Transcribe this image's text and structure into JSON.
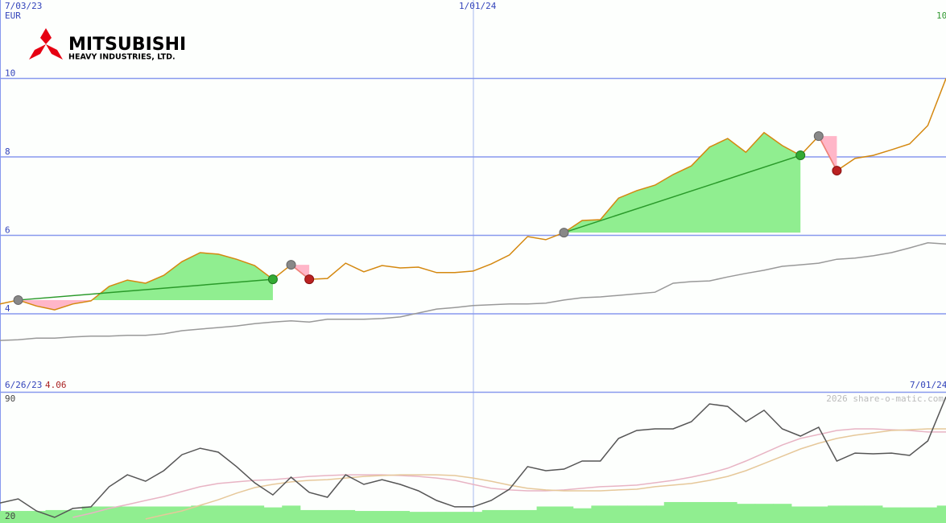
{
  "logo": {
    "name": "MITSUBISHI",
    "subtitle": "HEAVY INDUSTRIES, LTD."
  },
  "chart_data": [
    {
      "type": "line",
      "currency": "EUR",
      "date_labels": [
        "7/03/23",
        "1/01/24"
      ],
      "last_price_label": "10",
      "start_date": "6/26/23",
      "start_price": "4.06",
      "end_date": "7/01/24",
      "ylim": [
        2,
        12
      ],
      "yticks": [
        4,
        6,
        8,
        10
      ],
      "grid": true,
      "series": [
        {
          "color": "#d4880f",
          "values": [
            4.25,
            4.35,
            4.2,
            4.1,
            4.25,
            4.33,
            4.7,
            4.86,
            4.78,
            4.98,
            5.33,
            5.56,
            5.52,
            5.39,
            5.23,
            4.88,
            5.25,
            4.88,
            4.9,
            5.29,
            5.07,
            5.23,
            5.17,
            5.19,
            5.05,
            5.05,
            5.09,
            5.27,
            5.5,
            5.97,
            5.89,
            6.07,
            6.38,
            6.4,
            6.95,
            7.14,
            7.28,
            7.55,
            7.77,
            8.25,
            8.47,
            8.12,
            8.62,
            8.29,
            8.04,
            8.53,
            7.65,
            7.96,
            8.04,
            8.18,
            8.33,
            8.8,
            10.0
          ]
        },
        {
          "color": "#999999",
          "values": [
            3.32,
            3.34,
            3.38,
            3.38,
            3.41,
            3.43,
            3.43,
            3.45,
            3.45,
            3.49,
            3.57,
            3.61,
            3.65,
            3.69,
            3.75,
            3.79,
            3.82,
            3.79,
            3.86,
            3.86,
            3.86,
            3.88,
            3.92,
            4.02,
            4.12,
            4.16,
            4.21,
            4.23,
            4.25,
            4.25,
            4.27,
            4.35,
            4.41,
            4.43,
            4.47,
            4.51,
            4.55,
            4.78,
            4.82,
            4.84,
            4.94,
            5.03,
            5.11,
            5.21,
            5.25,
            5.29,
            5.39,
            5.42,
            5.48,
            5.56,
            5.68,
            5.81,
            5.78
          ]
        }
      ],
      "trades": [
        {
          "entry": 1,
          "exit": 15,
          "result": "gain"
        },
        {
          "entry": 16,
          "exit": 17,
          "result": "loss"
        },
        {
          "entry": 31,
          "exit": 44,
          "result": "gain"
        },
        {
          "entry": 45,
          "exit": 46,
          "result": "loss"
        }
      ]
    },
    {
      "type": "line",
      "watermark": "2026 share-o-matic.com",
      "ylim": [
        20,
        90
      ],
      "yticks": [
        20,
        90
      ],
      "series": [
        {
          "style": "bar",
          "color": "#90ee90",
          "values": [
            24.5,
            24.5,
            24.5,
            25,
            25,
            27,
            27,
            27,
            27,
            27,
            27,
            27.5,
            27.5,
            27.5,
            27.5,
            26.5,
            27.5,
            25,
            25,
            25,
            24.5,
            24.5,
            24.5,
            24,
            24,
            24,
            24,
            25,
            25,
            25,
            27,
            27,
            26,
            27.5,
            27.5,
            27.5,
            27.5,
            29.5,
            29.5,
            29.5,
            29.5,
            28.5,
            28.5,
            28.5,
            27,
            27,
            27.5,
            27.5,
            27.5,
            26.5,
            26.5,
            26.5,
            27.5
          ]
        },
        {
          "color": "#e8b4c4",
          "values": [
            null,
            null,
            null,
            null,
            20.9,
            23.2,
            25.9,
            28.1,
            30.4,
            32.6,
            35.4,
            38.1,
            39.9,
            40.8,
            41.7,
            42.1,
            43.0,
            43.9,
            44.4,
            44.8,
            44.8,
            44.8,
            44.4,
            43.9,
            43.0,
            41.7,
            39.4,
            37.2,
            36.3,
            35.8,
            35.8,
            36.3,
            37.2,
            38.1,
            38.5,
            39.0,
            40.3,
            41.7,
            43.5,
            45.7,
            48.5,
            52.5,
            57.0,
            61.5,
            65.2,
            67.4,
            69.7,
            70.6,
            70.6,
            70.1,
            69.7,
            68.8,
            68.8
          ]
        },
        {
          "color": "#e6c89a",
          "values": [
            null,
            null,
            null,
            null,
            null,
            null,
            null,
            null,
            20.0,
            22.3,
            24.5,
            27.7,
            30.8,
            34.5,
            37.6,
            39.4,
            40.8,
            41.7,
            42.1,
            43.0,
            43.9,
            44.4,
            44.8,
            44.8,
            44.8,
            44.4,
            43.0,
            41.2,
            39.0,
            37.2,
            36.3,
            35.8,
            35.8,
            35.8,
            36.3,
            36.7,
            38.1,
            39.0,
            39.9,
            41.7,
            43.9,
            47.1,
            51.1,
            55.2,
            59.3,
            62.5,
            65.2,
            67.0,
            68.3,
            69.7,
            70.1,
            70.6,
            70.6
          ]
        },
        {
          "color": "#555555",
          "values": [
            29.0,
            31.3,
            24.5,
            20.9,
            25.9,
            26.8,
            38.1,
            44.8,
            41.2,
            47.1,
            56.1,
            59.7,
            57.5,
            49.4,
            40.3,
            33.5,
            43.5,
            34.9,
            32.2,
            44.8,
            39.4,
            42.1,
            39.4,
            35.8,
            30.4,
            26.8,
            26.8,
            30.4,
            36.7,
            49.4,
            47.1,
            48.0,
            52.5,
            52.5,
            65.2,
            69.7,
            70.6,
            70.6,
            74.6,
            84.6,
            83.2,
            74.6,
            81.0,
            70.6,
            66.5,
            71.5,
            52.5,
            57.0,
            56.6,
            57.0,
            55.7,
            63.8,
            88.6
          ]
        }
      ]
    }
  ]
}
